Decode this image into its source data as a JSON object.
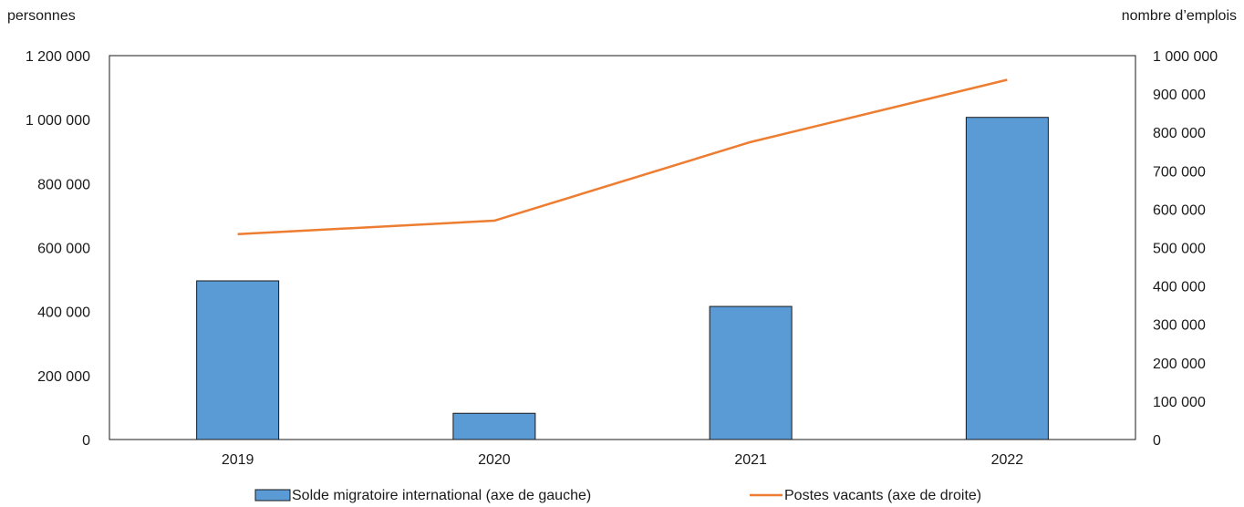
{
  "chart_data": {
    "type": "bar",
    "left_axis_title": "personnes",
    "right_axis_title": "nombre d’emplois",
    "categories": [
      "2019",
      "2020",
      "2021",
      "2022"
    ],
    "left_ylim": [
      0,
      1200000
    ],
    "right_ylim": [
      0,
      1000000
    ],
    "left_ticks": [
      0,
      200000,
      400000,
      600000,
      800000,
      1000000,
      1200000
    ],
    "left_tick_labels": [
      "0",
      "200 000",
      "400 000",
      "600 000",
      "800 000",
      "1 000 000",
      "1 200 000"
    ],
    "right_ticks": [
      0,
      100000,
      200000,
      300000,
      400000,
      500000,
      600000,
      700000,
      800000,
      900000,
      1000000
    ],
    "right_tick_labels": [
      "0",
      "100 000",
      "200 000",
      "300 000",
      "400 000",
      "500 000",
      "600 000",
      "700 000",
      "800 000",
      "900 000",
      "1 000 000"
    ],
    "grid": false,
    "legend_position": "bottom",
    "series": [
      {
        "name": "Solde migratoire international (axe de gauche)",
        "type": "bar",
        "axis": "left",
        "color": "#5b9bd5",
        "values": [
          496000,
          82000,
          416000,
          1007000
        ]
      },
      {
        "name": "Postes vacants (axe de droite)",
        "type": "line",
        "axis": "right",
        "color": "#ed7d31",
        "values": [
          535000,
          570000,
          775000,
          937000
        ]
      }
    ]
  }
}
